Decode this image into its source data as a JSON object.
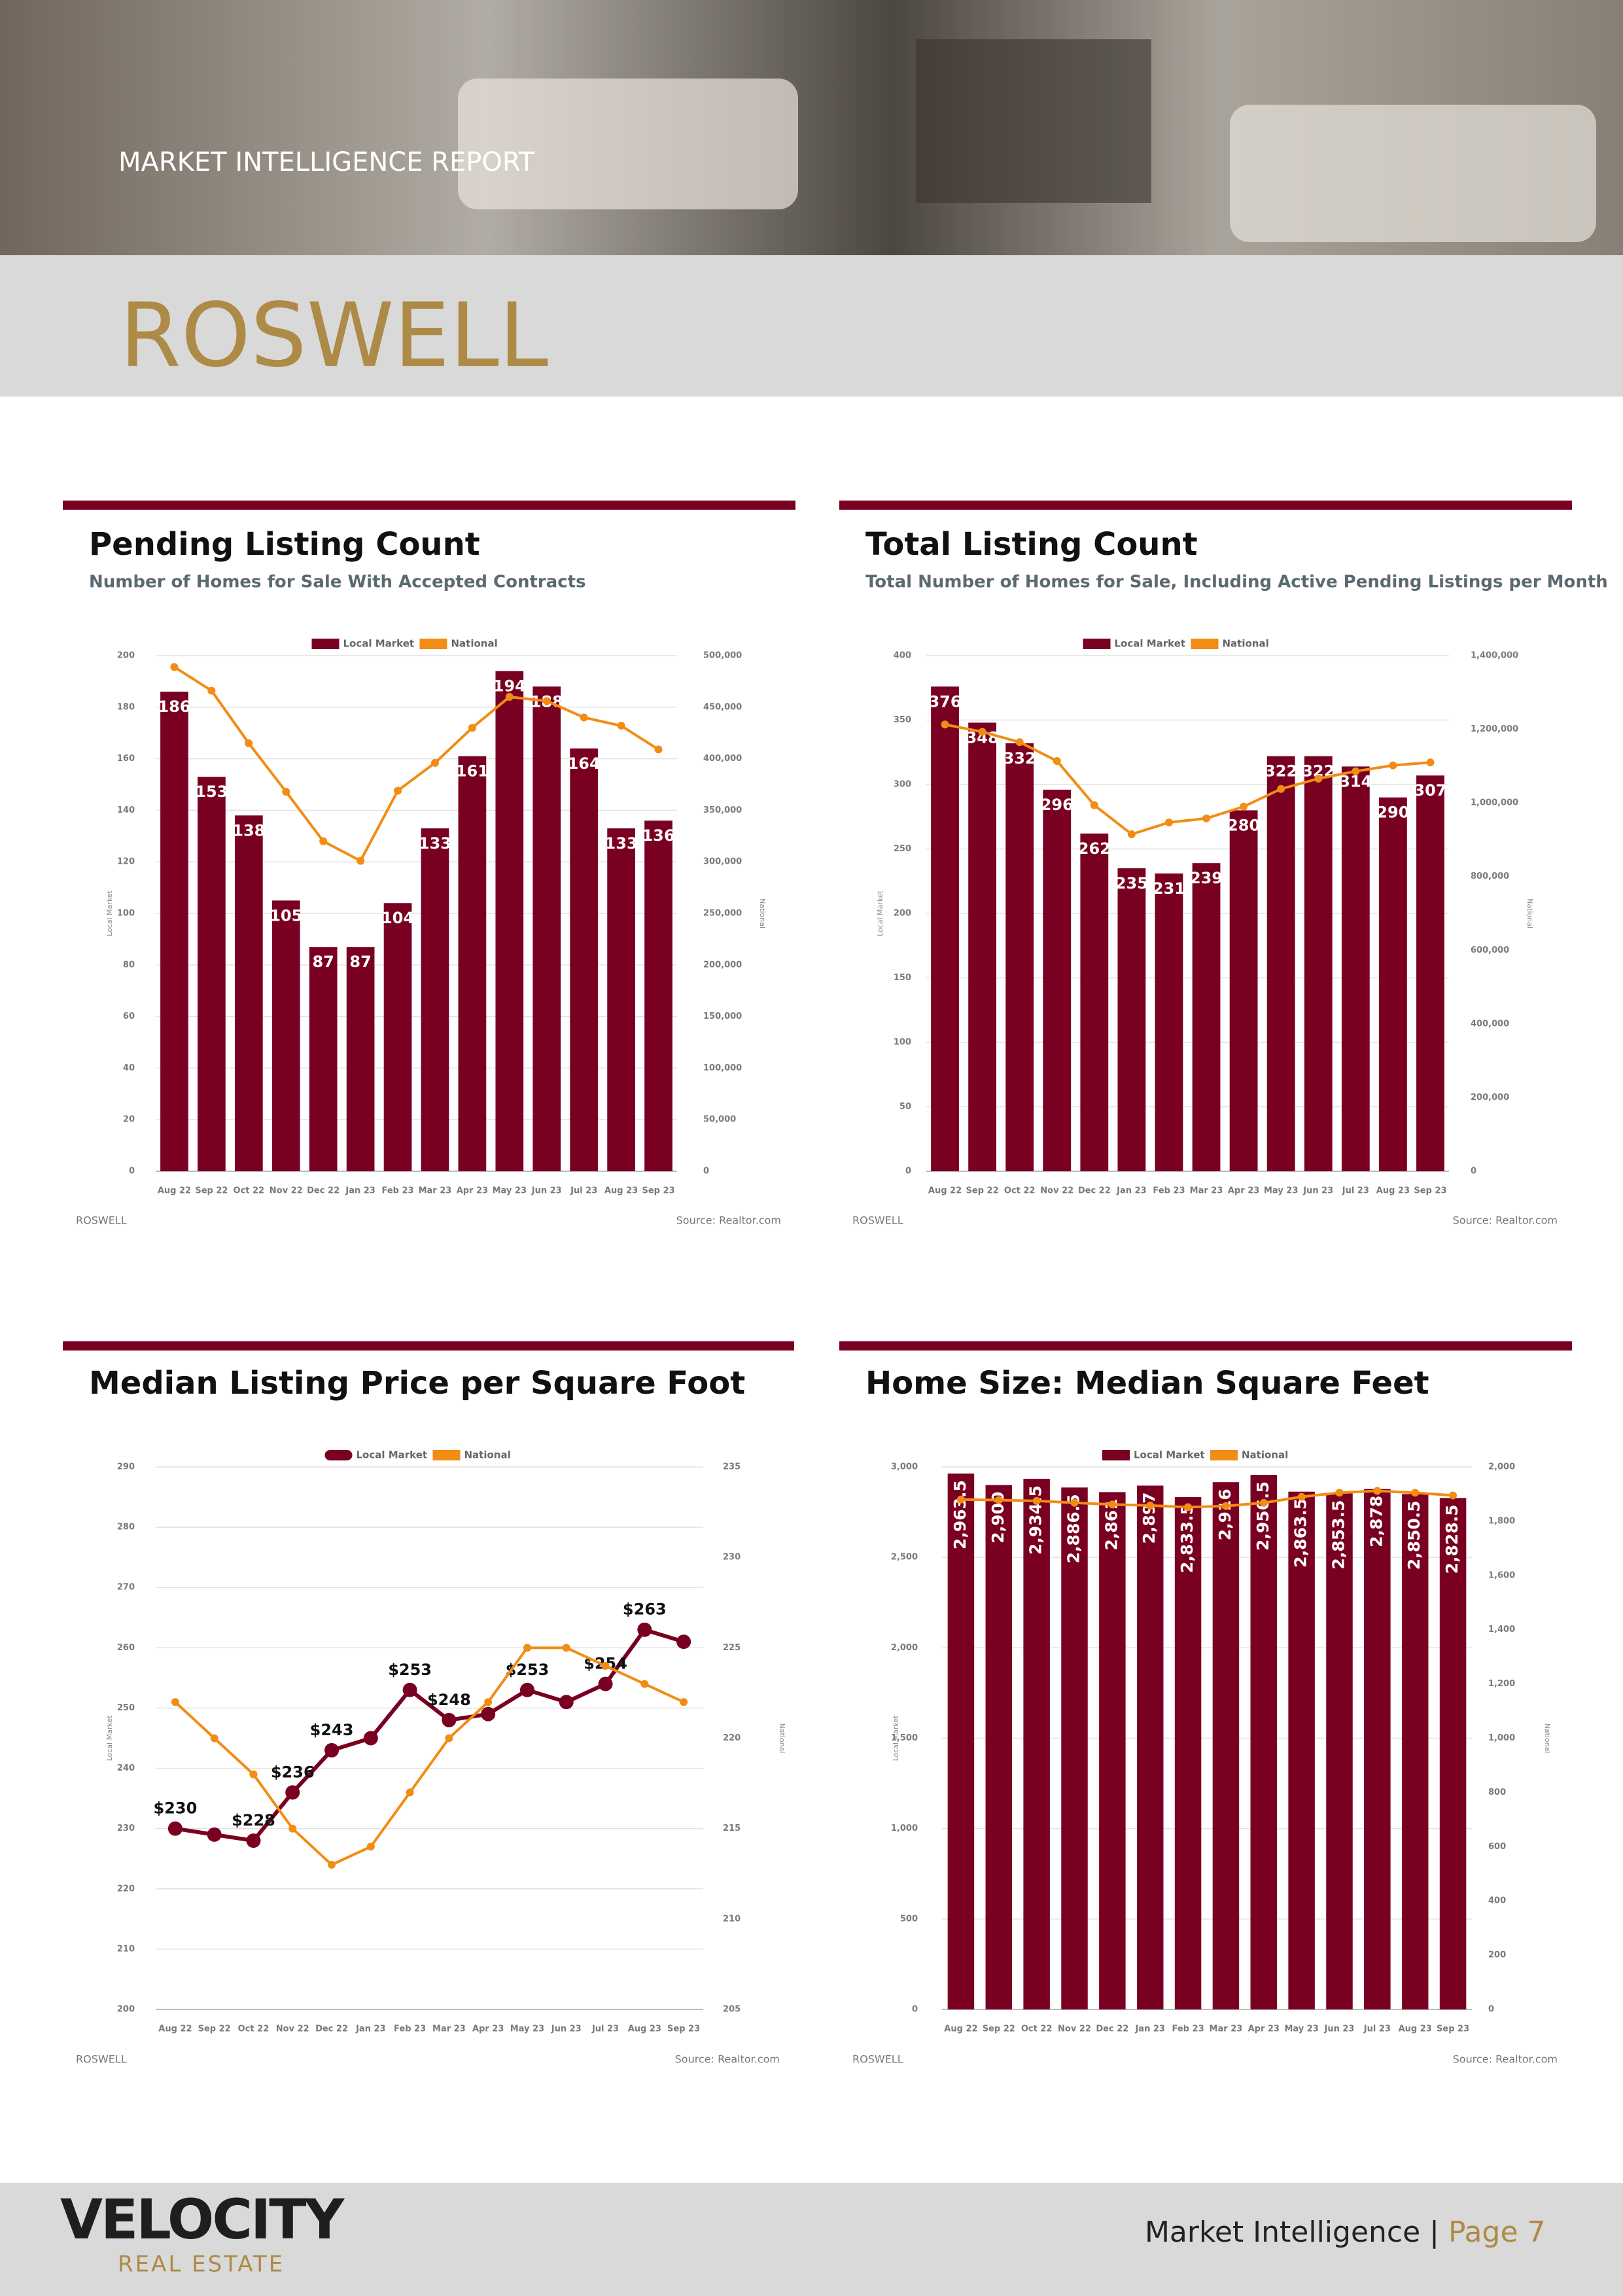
{
  "header": {
    "kicker": "MARKET INTELLIGENCE REPORT",
    "city": "ROSWELL"
  },
  "chart_data": [
    {
      "type": "bar",
      "title": "Pending Listing Count",
      "subtitle": "Number of Homes for Sale With Accepted Contracts",
      "categories": [
        "Aug 22",
        "Sep 22",
        "Oct 22",
        "Nov 22",
        "Dec 22",
        "Jan 23",
        "Feb 23",
        "Mar 23",
        "Apr 23",
        "May 23",
        "Jun 23",
        "Jul 23",
        "Aug 23",
        "Sep 23"
      ],
      "series": [
        {
          "name": "Local Market",
          "type": "bar",
          "color": "#7a0021",
          "values": [
            186,
            153,
            138,
            105,
            87,
            87,
            104,
            133,
            161,
            194,
            188,
            164,
            133,
            136
          ]
        },
        {
          "name": "National",
          "type": "line",
          "axis": "y2",
          "color": "#f28c14",
          "values": [
            489000,
            466000,
            415000,
            368000,
            320000,
            301000,
            369000,
            396000,
            430000,
            460000,
            456000,
            440000,
            432000,
            409000
          ]
        }
      ],
      "ylabel": "Local Market",
      "y2label": "National",
      "ylim": [
        0,
        200
      ],
      "yticks": [
        0,
        20,
        40,
        60,
        80,
        100,
        120,
        140,
        160,
        180,
        200
      ],
      "y2lim": [
        0,
        500000
      ],
      "y2ticks": [
        0,
        {
          "value": 50000,
          "label": "50,000"
        },
        {
          "value": 100000,
          "label": "100,000"
        },
        {
          "value": 150000,
          "label": "150,000"
        },
        {
          "value": 200000,
          "label": "200,000"
        },
        {
          "value": 250000,
          "label": "250,000"
        },
        {
          "value": 300000,
          "label": "300,000"
        },
        {
          "value": 350000,
          "label": "350,000"
        },
        {
          "value": 400000,
          "label": "400,000"
        },
        {
          "value": 450000,
          "label": "450,000"
        },
        {
          "value": 500000,
          "label": "500,000"
        }
      ],
      "grid": true,
      "legend": "top",
      "footer": "ROSWELL",
      "source": "Source: Realtor.com"
    },
    {
      "type": "bar",
      "title": "Total Listing Count",
      "subtitle": "Total Number of Homes for Sale, Including Active Pending Listings per Month",
      "categories": [
        "Aug 22",
        "Sep 22",
        "Oct 22",
        "Nov 22",
        "Dec 22",
        "Jan 23",
        "Feb 23",
        "Mar 23",
        "Apr 23",
        "May 23",
        "Jun 23",
        "Jul 23",
        "Aug 23",
        "Sep 23"
      ],
      "series": [
        {
          "name": "Local Market",
          "type": "bar",
          "color": "#7a0021",
          "values": [
            376,
            348,
            332,
            296,
            262,
            235,
            231,
            239,
            280,
            322,
            322,
            314,
            290,
            307
          ]
        },
        {
          "name": "National",
          "type": "line",
          "axis": "y2",
          "color": "#f28c14",
          "values": [
            1213000,
            1193000,
            1165000,
            1114000,
            994000,
            915000,
            947000,
            958000,
            990000,
            1038000,
            1066000,
            1086000,
            1102000,
            1110000
          ]
        }
      ],
      "ylabel": "Local Market",
      "y2label": "National",
      "ylim": [
        0,
        400
      ],
      "yticks": [
        0,
        50,
        100,
        150,
        200,
        250,
        300,
        350,
        400
      ],
      "y2lim": [
        0,
        1400000
      ],
      "y2ticks": [
        0,
        {
          "value": 200000,
          "label": "200,000"
        },
        {
          "value": 400000,
          "label": "400,000"
        },
        {
          "value": 600000,
          "label": "600,000"
        },
        {
          "value": 800000,
          "label": "800,000"
        },
        {
          "value": 1000000,
          "label": "1,000,000"
        },
        {
          "value": 1200000,
          "label": "1,200,000"
        },
        {
          "value": 1400000,
          "label": "1,400,000"
        }
      ],
      "grid": true,
      "legend": "top",
      "footer": "ROSWELL",
      "source": "Source: Realtor.com"
    },
    {
      "type": "line",
      "title": "Median Listing Price per Square Foot",
      "categories": [
        "Aug 22",
        "Sep 22",
        "Oct 22",
        "Nov 22",
        "Dec 22",
        "Jan 23",
        "Feb 23",
        "Mar 23",
        "Apr 23",
        "May 23",
        "Jun 23",
        "Jul 23",
        "Aug 23",
        "Sep 23"
      ],
      "series": [
        {
          "name": "Local Market",
          "type": "line",
          "color": "#7a0021",
          "values": [
            230,
            229,
            228,
            236,
            243,
            245,
            253,
            248,
            249,
            253,
            251,
            254,
            263,
            261
          ],
          "value_labels": [
            "$230",
            null,
            "$228",
            "$236",
            "$243",
            null,
            "$253",
            "$248",
            null,
            "$253",
            null,
            "$254",
            "$263",
            null
          ]
        },
        {
          "name": "National",
          "type": "line",
          "axis": "y2",
          "color": "#f28c14",
          "values": [
            222,
            220,
            218,
            215,
            213,
            214,
            217,
            220,
            222,
            225,
            225,
            224,
            223,
            222
          ]
        }
      ],
      "ylabel": "Local Market",
      "y2label": "National",
      "ylim": [
        200,
        290
      ],
      "yticks": [
        200,
        210,
        220,
        230,
        240,
        250,
        260,
        270,
        280,
        290
      ],
      "y2lim": [
        205,
        235
      ],
      "y2ticks": [
        205,
        210,
        215,
        220,
        225,
        230,
        235
      ],
      "grid": true,
      "legend": "top",
      "footer": "ROSWELL",
      "source": "Source: Realtor.com"
    },
    {
      "type": "bar",
      "title": "Home Size: Median Square Feet",
      "categories": [
        "Aug 22",
        "Sep 22",
        "Oct 22",
        "Nov 22",
        "Dec 22",
        "Jan 23",
        "Feb 23",
        "Mar 23",
        "Apr 23",
        "May 23",
        "Jun 23",
        "Jul 23",
        "Aug 23",
        "Sep 23"
      ],
      "series": [
        {
          "name": "Local Market",
          "type": "bar",
          "color": "#7a0021",
          "values": [
            2963.5,
            2900,
            2934.5,
            2886.5,
            2861,
            2897,
            2833.5,
            2916,
            2956.5,
            2863.5,
            2853.5,
            2878,
            2850.5,
            2828.5
          ],
          "value_labels": [
            "2,963.5",
            "2,900",
            "2,934.5",
            "2,886.5",
            "2,861",
            "2,897",
            "2,833.5",
            "2,916",
            "2,956.5",
            "2,863.5",
            "2,853.5",
            "2,878",
            "2,850.5",
            "2,828.5"
          ]
        },
        {
          "name": "National",
          "type": "line",
          "axis": "y2",
          "color": "#f28c14",
          "values": [
            1880,
            1878,
            1875,
            1868,
            1862,
            1858,
            1852,
            1856,
            1868,
            1890,
            1905,
            1912,
            1905,
            1895
          ]
        }
      ],
      "ylabel": "Local Market",
      "y2label": "National",
      "ylim": [
        0,
        3000
      ],
      "yticks": [
        0,
        500,
        {
          "value": 1000,
          "label": "1,000"
        },
        {
          "value": 1500,
          "label": "1,500"
        },
        {
          "value": 2000,
          "label": "2,000"
        },
        {
          "value": 2500,
          "label": "2,500"
        },
        {
          "value": 3000,
          "label": "3,000"
        }
      ],
      "y2lim": [
        0,
        2000
      ],
      "y2ticks": [
        0,
        200,
        400,
        600,
        800,
        {
          "value": 1000,
          "label": "1,000"
        },
        {
          "value": 1200,
          "label": "1,200"
        },
        {
          "value": 1400,
          "label": "1,400"
        },
        {
          "value": 1600,
          "label": "1,600"
        },
        {
          "value": 1800,
          "label": "1,800"
        },
        {
          "value": 2000,
          "label": "2,000"
        }
      ],
      "grid": true,
      "legend": "top",
      "footer": "ROSWELL",
      "source": "Source: Realtor.com"
    }
  ],
  "footer": {
    "brand": "VELOCITY",
    "brand_sub": "REAL ESTATE",
    "label": "Market Intelligence |",
    "page": "Page 7"
  }
}
